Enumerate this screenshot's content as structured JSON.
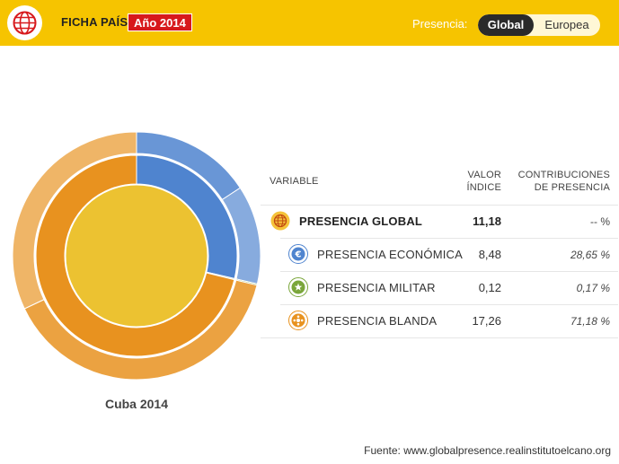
{
  "header": {
    "title": "FICHA PAÍS",
    "year_badge": "Año 2014",
    "presence_label": "Presencia:",
    "toggle_options": [
      "Global",
      "Europea"
    ],
    "active_option": "Global"
  },
  "chart_data": {
    "type": "sunburst",
    "caption": "Cuba 2014",
    "rings": [
      {
        "level": "global",
        "segments": [
          {
            "name": "PRESENCIA GLOBAL",
            "share": 100,
            "color": "#ecc231"
          }
        ]
      },
      {
        "level": "dimension",
        "segments": [
          {
            "name": "PRESENCIA ECONÓMICA",
            "share": 28.65,
            "color": "#4f84cf"
          },
          {
            "name": "PRESENCIA MILITAR",
            "share": 0.17,
            "color": "#7aa63a"
          },
          {
            "name": "PRESENCIA BLANDA",
            "share": 71.18,
            "color": "#e8921f"
          }
        ]
      }
    ]
  },
  "table": {
    "headers": {
      "variable": "VARIABLE",
      "valor_line1": "VALOR",
      "valor_line2": "ÍNDICE",
      "contrib_line1": "CONTRIBUCIONES",
      "contrib_line2": "DE PRESENCIA"
    },
    "rows": [
      {
        "label": "PRESENCIA GLOBAL",
        "value": "11,18",
        "contribution": "-- %",
        "icon": "globe-icon",
        "color": "#e8921f"
      },
      {
        "label": "PRESENCIA ECONÓMICA",
        "value": "8,48",
        "contribution": "28,65 %",
        "icon": "euro-icon",
        "color": "#4f84cf"
      },
      {
        "label": "PRESENCIA MILITAR",
        "value": "0,12",
        "contribution": "0,17 %",
        "icon": "star-icon",
        "color": "#7aa63a"
      },
      {
        "label": "PRESENCIA BLANDA",
        "value": "17,26",
        "contribution": "71,18 %",
        "icon": "soft-power-icon",
        "color": "#e8921f"
      }
    ]
  },
  "footer": {
    "source": "Fuente: www.globalpresence.realinstitutoelcano.org"
  }
}
